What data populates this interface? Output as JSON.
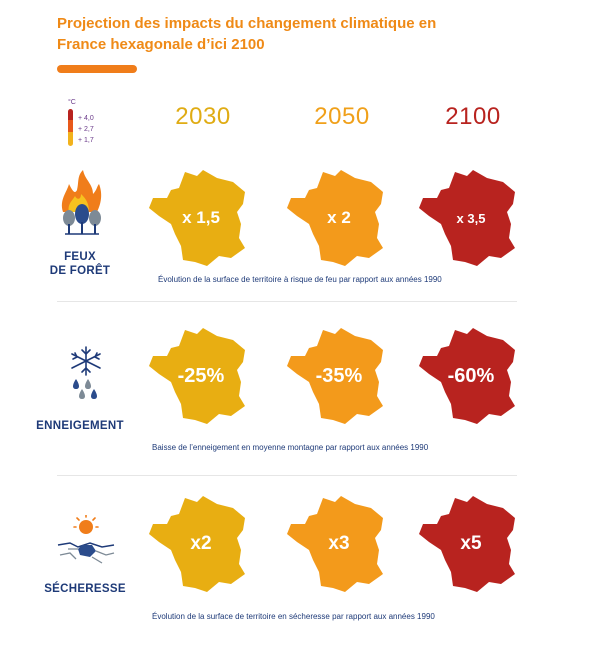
{
  "title": "Projection des impacts du changement climatique en France hexagonale d’ici 2100",
  "legend": {
    "unit": "°C",
    "items": [
      "+ 4,0",
      "+ 2,7",
      "+ 1,7"
    ],
    "colors": [
      "#b8231f",
      "#e8591a",
      "#f2b21c"
    ]
  },
  "years": [
    {
      "label": "2030",
      "color": "#e0ac14"
    },
    {
      "label": "2050",
      "color": "#f0a01a"
    },
    {
      "label": "2100",
      "color": "#b8231f"
    }
  ],
  "map_colors": [
    "#e8ae12",
    "#f39a1b",
    "#b8231f"
  ],
  "rows": [
    {
      "label_line1": "FEUX",
      "label_line2": "DE FORÊT",
      "icon": "forest-fire-icon",
      "values": [
        "x 1,5",
        "x 2",
        "x 3,5"
      ],
      "caption": "Évolution de la surface de territoire à risque de feu par rapport aux années 1990"
    },
    {
      "label_line1": "ENNEIGEMENT",
      "label_line2": "",
      "icon": "snowflake-icon",
      "values": [
        "-25%",
        "-35%",
        "-60%"
      ],
      "caption": "Baisse de l’enneigement en moyenne montagne par rapport aux années 1990"
    },
    {
      "label_line1": "SÉCHERESSE",
      "label_line2": "",
      "icon": "drought-icon",
      "values": [
        "x2",
        "x3",
        "x5"
      ],
      "caption": "Évolution de la surface de territoire en sécheresse par rapport aux années 1990"
    }
  ]
}
